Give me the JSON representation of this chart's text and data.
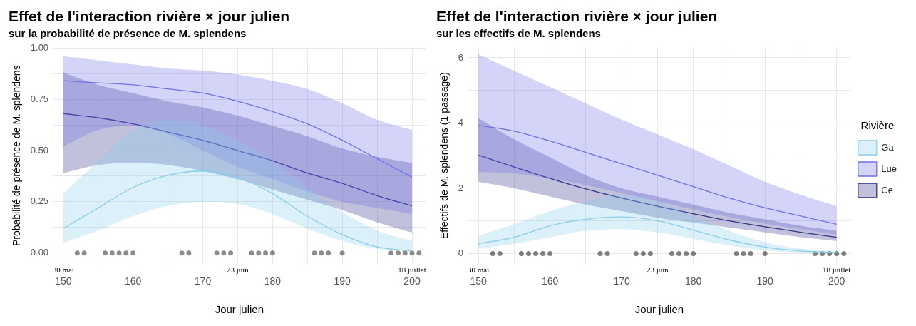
{
  "chart_data": [
    {
      "type": "line",
      "title": "Effet de l'interaction rivière × jour julien",
      "subtitle": "sur la probabilité de présence de M. splendens",
      "xlabel": "Jour julien",
      "ylabel": "Probabilité de présence de M. splendens",
      "x": [
        150,
        155,
        160,
        165,
        170,
        175,
        180,
        185,
        190,
        195,
        200
      ],
      "series": [
        {
          "color": "#87ceeb",
          "values": [
            0.12,
            0.22,
            0.32,
            0.38,
            0.4,
            0.37,
            0.29,
            0.18,
            0.09,
            0.03,
            0.01
          ],
          "lower": [
            0.05,
            0.11,
            0.18,
            0.23,
            0.25,
            0.24,
            0.19,
            0.12,
            0.06,
            0.02,
            0.01
          ],
          "upper": [
            0.29,
            0.45,
            0.6,
            0.65,
            0.62,
            0.55,
            0.45,
            0.32,
            0.2,
            0.11,
            0.06
          ]
        },
        {
          "color": "#7070e8",
          "values": [
            0.84,
            0.83,
            0.82,
            0.8,
            0.78,
            0.74,
            0.69,
            0.63,
            0.55,
            0.46,
            0.37
          ],
          "lower": [
            0.52,
            0.6,
            0.62,
            0.58,
            0.5,
            0.42,
            0.36,
            0.3,
            0.25,
            0.22,
            0.19
          ],
          "upper": [
            0.96,
            0.94,
            0.92,
            0.9,
            0.89,
            0.87,
            0.84,
            0.8,
            0.73,
            0.65,
            0.6
          ]
        },
        {
          "color": "#33338c",
          "values": [
            0.68,
            0.66,
            0.63,
            0.59,
            0.55,
            0.5,
            0.45,
            0.39,
            0.34,
            0.28,
            0.23
          ],
          "lower": [
            0.39,
            0.43,
            0.44,
            0.43,
            0.4,
            0.36,
            0.31,
            0.26,
            0.21,
            0.15,
            0.1
          ],
          "upper": [
            0.88,
            0.82,
            0.78,
            0.74,
            0.71,
            0.67,
            0.62,
            0.57,
            0.51,
            0.47,
            0.44
          ]
        },
        {
          "type": "scatter",
          "marker": "circle",
          "color": "#666666",
          "x": [
            152,
            153,
            156,
            157,
            158,
            159,
            160,
            167,
            168,
            172,
            173,
            174,
            177,
            178,
            179,
            180,
            186,
            187,
            188,
            190,
            197,
            198,
            199,
            200,
            201
          ],
          "values": [
            0,
            0,
            0,
            0,
            0,
            0,
            0,
            0,
            0,
            0,
            0,
            0,
            0,
            0,
            0,
            0,
            0,
            0,
            0,
            0,
            0,
            0,
            0,
            0,
            0
          ]
        }
      ],
      "xlim": [
        148.5,
        202
      ],
      "xticks": [
        150,
        {
          "value": 155,
          "label": null
        },
        160,
        {
          "value": 165,
          "label": null
        },
        170,
        {
          "value": 175,
          "label": null
        },
        180,
        {
          "value": 185,
          "label": null
        },
        190,
        {
          "value": 195,
          "label": null
        },
        200
      ],
      "ylim": [
        -0.05,
        1.0
      ],
      "yticks": [
        {
          "value": 0,
          "label": "0.00"
        },
        {
          "value": 0.125,
          "label": null
        },
        0.25,
        {
          "value": 0.375,
          "label": null
        },
        {
          "value": 0.5,
          "label": "0.50"
        },
        {
          "value": 0.625,
          "label": null
        },
        0.75,
        {
          "value": 0.875,
          "label": null
        },
        {
          "value": 1,
          "label": "1.00"
        }
      ],
      "annotations": [
        "30 mai",
        "23 juin",
        "18 juillet"
      ],
      "grid": true,
      "legend": false,
      "marker": "none",
      "line_style": "solid"
    },
    {
      "type": "line",
      "title": "Effet de l'interaction rivière × jour julien",
      "subtitle": "sur les effectifs de M. splendens",
      "xlabel": "Jour julien",
      "ylabel": "Effectifs de M. splendens (1 passage)",
      "legend_title": "Rivière",
      "x": [
        150,
        155,
        160,
        165,
        170,
        175,
        180,
        185,
        190,
        195,
        200
      ],
      "series": [
        {
          "name": "Ga",
          "color": "#87ceeb",
          "values": [
            0.3,
            0.5,
            0.85,
            1.05,
            1.12,
            1.0,
            0.72,
            0.42,
            0.2,
            0.08,
            0.03
          ],
          "lower": [
            0.15,
            0.3,
            0.5,
            0.7,
            0.75,
            0.65,
            0.45,
            0.25,
            0.1,
            0.03,
            0.01
          ],
          "upper": [
            0.55,
            0.9,
            1.3,
            1.6,
            1.8,
            1.6,
            1.15,
            0.7,
            0.35,
            0.15,
            0.06
          ]
        },
        {
          "name": "Lue",
          "color": "#7070e8",
          "values": [
            3.93,
            3.75,
            3.45,
            3.1,
            2.75,
            2.4,
            2.05,
            1.7,
            1.4,
            1.15,
            0.9
          ],
          "lower": [
            2.5,
            2.45,
            2.3,
            2.1,
            1.85,
            1.6,
            1.35,
            1.12,
            0.92,
            0.75,
            0.58
          ],
          "upper": [
            6.1,
            5.6,
            5.1,
            4.6,
            4.1,
            3.65,
            3.2,
            2.7,
            2.2,
            1.8,
            1.45
          ]
        },
        {
          "name": "Ce",
          "color": "#33338c",
          "values": [
            3.02,
            2.65,
            2.3,
            1.98,
            1.7,
            1.45,
            1.22,
            1.0,
            0.82,
            0.65,
            0.5
          ],
          "lower": [
            2.2,
            2.0,
            1.75,
            1.5,
            1.3,
            1.1,
            0.95,
            0.8,
            0.65,
            0.5,
            0.38
          ],
          "upper": [
            4.15,
            3.5,
            2.95,
            2.4,
            2.0,
            1.75,
            1.5,
            1.25,
            1.05,
            0.85,
            0.7
          ]
        },
        {
          "type": "scatter",
          "marker": "circle",
          "color": "#555555",
          "x": [
            152,
            153,
            156,
            157,
            158,
            159,
            160,
            167,
            168,
            172,
            173,
            174,
            177,
            178,
            179,
            180,
            186,
            187,
            188,
            190,
            197,
            198,
            199,
            200,
            201
          ],
          "values": [
            0,
            0,
            0,
            0,
            0,
            0,
            0,
            0,
            0,
            0,
            0,
            0,
            0,
            0,
            0,
            0,
            0,
            0,
            0,
            0,
            0,
            0,
            0,
            0,
            0
          ]
        }
      ],
      "xlim": [
        148.5,
        202
      ],
      "xticks": [
        150,
        {
          "value": 155,
          "label": null
        },
        160,
        {
          "value": 165,
          "label": null
        },
        170,
        {
          "value": 175,
          "label": null
        },
        180,
        {
          "value": 185,
          "label": null
        },
        190,
        {
          "value": 195,
          "label": null
        },
        200
      ],
      "ylim": [
        -0.3,
        6.3
      ],
      "yticks": [
        0,
        {
          "value": 1,
          "label": null
        },
        2,
        {
          "value": 3,
          "label": null
        },
        4,
        {
          "value": 5,
          "label": null
        },
        6
      ],
      "annotations": [
        "30 mai",
        "23 juin",
        "18 juillet"
      ],
      "grid": true,
      "legend": "right",
      "marker": "none",
      "line_style": "solid"
    }
  ]
}
